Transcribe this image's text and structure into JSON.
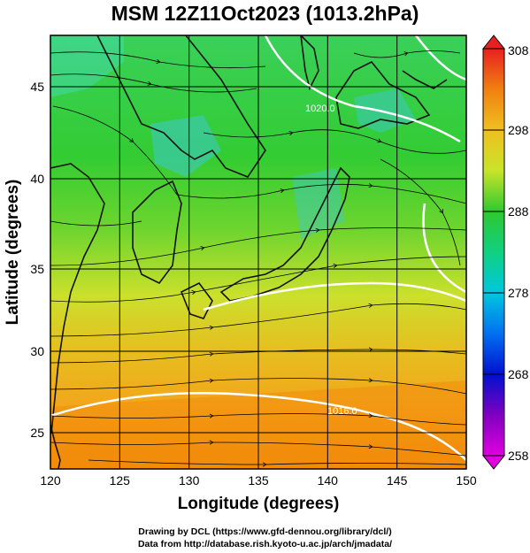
{
  "title": "MSM 12Z11Oct2023 (1013.2hPa)",
  "xlabel": "Longitude (degrees)",
  "ylabel": "Latitude  (degrees)",
  "x_ticks": [
    "120",
    "125",
    "130",
    "135",
    "140",
    "145",
    "150"
  ],
  "y_ticks": [
    "25",
    "30",
    "35",
    "40",
    "45"
  ],
  "colorbar": {
    "ticks": [
      "308",
      "298",
      "288",
      "278",
      "268",
      "258"
    ],
    "range": [
      258,
      308
    ]
  },
  "contour_labels": [
    "1020.0",
    "1016.0"
  ],
  "credits": {
    "line1": "Drawing by DCL (https://www.gfd-dennou.org/library/dcl/)",
    "line2": "Data from http://database.rish.kyoto-u.ac.jp/arch/jmadata/"
  },
  "colors": {
    "warm": "#f28a0a",
    "mid": "#d6e52a",
    "cool": "#33cc33",
    "cold": "#3cc8d0",
    "coastline": "#111111",
    "isobar": "#ffffff"
  }
}
